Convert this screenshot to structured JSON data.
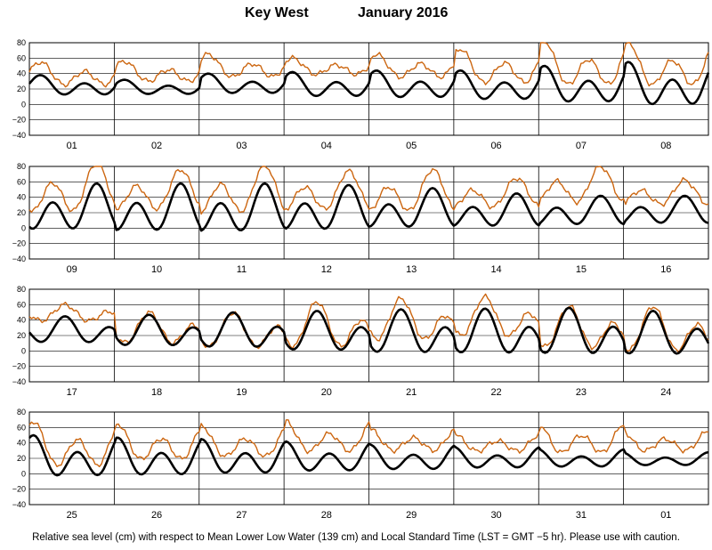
{
  "header": {
    "location": "Key West",
    "month_year": "January   2016"
  },
  "footer": {
    "note": "Relative sea level (cm) with respect to Mean Lower Low Water (139 cm) and Local Standard Time (LST = GMT −5 hr). Please use with caution."
  },
  "colors": {
    "predicted": "#000000",
    "observed": "#cc6610",
    "grid": "#000000"
  },
  "chart_data": {
    "type": "line",
    "y_ticks": [
      "80",
      "60",
      "40",
      "20",
      "0",
      "−20",
      "−40"
    ],
    "ylim": [
      -40,
      80
    ],
    "grid": true,
    "panels": [
      {
        "days": [
          "01",
          "02",
          "03",
          "04",
          "05",
          "06",
          "07",
          "08"
        ],
        "predicted": [
          [
            8,
            38
          ],
          [
            10,
            32
          ],
          [
            10,
            40
          ],
          [
            5,
            42
          ],
          [
            3,
            44
          ],
          [
            0,
            44
          ],
          [
            -5,
            50
          ],
          [
            -10,
            55
          ]
        ],
        "observed": [
          [
            20,
            55
          ],
          [
            25,
            56
          ],
          [
            30,
            65
          ],
          [
            35,
            60
          ],
          [
            30,
            65
          ],
          [
            20,
            72
          ],
          [
            15,
            82
          ],
          [
            15,
            80
          ]
        ]
      },
      {
        "days": [
          "09",
          "10",
          "11",
          "12",
          "13",
          "14",
          "15",
          "16"
        ],
        "predicted": [
          [
            -12,
            58
          ],
          [
            -14,
            58
          ],
          [
            -15,
            58
          ],
          [
            -12,
            56
          ],
          [
            -8,
            52
          ],
          [
            -5,
            45
          ],
          [
            -2,
            42
          ],
          [
            0,
            42
          ]
        ],
        "observed": [
          [
            10,
            85
          ],
          [
            15,
            76
          ],
          [
            10,
            82
          ],
          [
            15,
            74
          ],
          [
            12,
            76
          ],
          [
            20,
            65
          ],
          [
            25,
            80
          ],
          [
            25,
            62
          ]
        ]
      },
      {
        "days": [
          "17",
          "18",
          "19",
          "20",
          "21",
          "22",
          "23",
          "24"
        ],
        "predicted": [
          [
            5,
            45
          ],
          [
            0,
            47
          ],
          [
            -3,
            50
          ],
          [
            -8,
            52
          ],
          [
            -12,
            54
          ],
          [
            -13,
            55
          ],
          [
            -14,
            56
          ],
          [
            -14,
            52
          ]
        ],
        "observed": [
          [
            35,
            60
          ],
          [
            3,
            50
          ],
          [
            -3,
            50
          ],
          [
            -5,
            64
          ],
          [
            5,
            68
          ],
          [
            10,
            70
          ],
          [
            -5,
            58
          ],
          [
            -10,
            58
          ]
        ]
      },
      {
        "days": [
          "25",
          "26",
          "27",
          "28",
          "29",
          "30",
          "31",
          "01"
        ],
        "predicted": [
          [
            -12,
            50
          ],
          [
            -10,
            47
          ],
          [
            -7,
            45
          ],
          [
            -3,
            42
          ],
          [
            0,
            38
          ],
          [
            3,
            35
          ],
          [
            5,
            32
          ],
          [
            8,
            28
          ]
        ],
        "observed": [
          [
            0,
            68
          ],
          [
            10,
            65
          ],
          [
            15,
            62
          ],
          [
            22,
            68
          ],
          [
            25,
            58
          ],
          [
            25,
            52
          ],
          [
            20,
            66
          ],
          [
            25,
            56
          ]
        ]
      }
    ],
    "series": [
      {
        "name": ""
      },
      {
        "name": ""
      }
    ]
  }
}
